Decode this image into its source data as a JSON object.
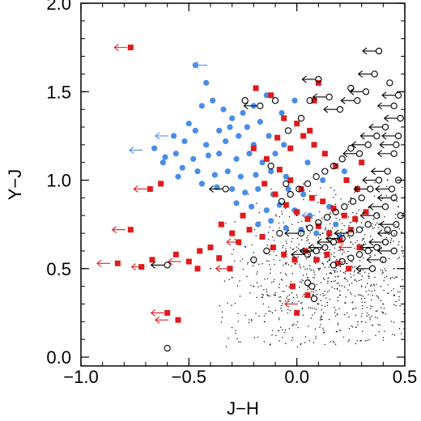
{
  "chart_data": {
    "type": "scatter",
    "xlabel": "J−H",
    "ylabel": "Y−J",
    "xlim": [
      -1.0,
      0.5
    ],
    "ylim": [
      -0.05,
      2.0
    ],
    "x_ticks": [
      "−1.0",
      "−0.5",
      "0.0",
      "0.5"
    ],
    "x_tick_values": [
      -1.0,
      -0.5,
      0.0,
      0.5
    ],
    "y_ticks": [
      "0.0",
      "0.5",
      "1.0",
      "1.5",
      "2.0"
    ],
    "y_tick_values": [
      0.0,
      0.5,
      1.0,
      1.5,
      2.0
    ],
    "grid": false,
    "legend": "none",
    "series": [
      {
        "marker": "small-black-dots",
        "color": "#000000",
        "description_points": [
          [
            -0.02,
            0.18
          ],
          [
            0.1,
            0.3
          ],
          [
            0.2,
            0.35
          ],
          [
            0.3,
            0.4
          ],
          [
            0.4,
            0.3
          ],
          [
            0.45,
            0.5
          ],
          [
            0.35,
            0.6
          ],
          [
            0.25,
            0.65
          ],
          [
            0.15,
            0.55
          ],
          [
            0.05,
            0.45
          ],
          [
            0.3,
            0.2
          ],
          [
            0.4,
            0.25
          ],
          [
            0.45,
            0.35
          ],
          [
            0.2,
            0.15
          ],
          [
            0.35,
            0.18
          ],
          [
            0.48,
            0.4
          ],
          [
            0.1,
            0.5
          ],
          [
            -0.1,
            0.35
          ],
          [
            -0.2,
            0.4
          ],
          [
            -0.15,
            0.2
          ],
          [
            0.0,
            0.8
          ],
          [
            0.25,
            0.9
          ],
          [
            0.42,
            1.0
          ],
          [
            0.38,
            0.75
          ],
          [
            0.47,
            0.85
          ],
          [
            -0.3,
            0.45
          ],
          [
            -0.4,
            0.5
          ],
          [
            -0.05,
            0.6
          ],
          [
            0.12,
            0.7
          ],
          [
            0.28,
            0.5
          ]
        ]
      },
      {
        "marker": "blue-filled-circle",
        "color": "#4a8de8",
        "points": [
          [
            -0.47,
            1.65
          ],
          [
            -0.42,
            1.55
          ],
          [
            -0.39,
            1.45
          ],
          [
            -0.44,
            1.42
          ],
          [
            -0.3,
            1.35
          ],
          [
            -0.25,
            1.38
          ],
          [
            -0.5,
            1.32
          ],
          [
            -0.47,
            1.28
          ],
          [
            -0.36,
            1.28
          ],
          [
            -0.31,
            1.3
          ],
          [
            -0.23,
            1.3
          ],
          [
            -0.17,
            1.33
          ],
          [
            -0.57,
            1.25
          ],
          [
            -0.52,
            1.22
          ],
          [
            -0.42,
            1.2
          ],
          [
            -0.33,
            1.22
          ],
          [
            -0.27,
            1.25
          ],
          [
            -0.2,
            1.2
          ],
          [
            -0.13,
            1.25
          ],
          [
            -0.66,
            1.18
          ],
          [
            -0.61,
            1.13
          ],
          [
            -0.56,
            1.15
          ],
          [
            -0.48,
            1.12
          ],
          [
            -0.41,
            1.14
          ],
          [
            -0.36,
            1.15
          ],
          [
            -0.28,
            1.12
          ],
          [
            -0.22,
            1.15
          ],
          [
            -0.16,
            1.1
          ],
          [
            -0.1,
            1.15
          ],
          [
            -0.06,
            1.2
          ],
          [
            -0.53,
            1.07
          ],
          [
            -0.46,
            1.05
          ],
          [
            -0.38,
            1.03
          ],
          [
            -0.32,
            1.05
          ],
          [
            -0.26,
            1.02
          ],
          [
            -0.19,
            1.03
          ],
          [
            -0.12,
            1.05
          ],
          [
            -0.05,
            1.02
          ],
          [
            -0.44,
            0.98
          ],
          [
            -0.37,
            0.96
          ],
          [
            -0.3,
            0.95
          ],
          [
            -0.24,
            0.93
          ],
          [
            -0.18,
            0.95
          ],
          [
            -0.11,
            0.92
          ],
          [
            -0.04,
            0.95
          ],
          [
            0.03,
            0.92
          ],
          [
            -0.28,
            0.87
          ],
          [
            -0.21,
            0.85
          ],
          [
            -0.14,
            0.83
          ],
          [
            -0.08,
            0.86
          ],
          [
            -0.01,
            0.83
          ],
          [
            0.06,
            0.8
          ],
          [
            -0.18,
            0.75
          ],
          [
            -0.12,
            0.77
          ],
          [
            -0.05,
            0.73
          ],
          [
            0.02,
            0.72
          ],
          [
            0.09,
            0.7
          ],
          [
            -0.34,
            1.4
          ],
          [
            -0.2,
            1.42
          ],
          [
            -0.07,
            1.38
          ],
          [
            -0.14,
            1.48
          ],
          [
            -0.01,
            1.45
          ],
          [
            0.05,
            1.1
          ],
          [
            0.12,
            1.0
          ],
          [
            0.15,
            0.85
          ],
          [
            0.18,
            0.75
          ],
          [
            0.2,
            0.68
          ],
          [
            0.22,
            1.05
          ],
          [
            -0.55,
            1.02
          ],
          [
            -0.62,
            1.1
          ]
        ]
      },
      {
        "marker": "blue-upper-limit-arrow",
        "color": "#4a8de8",
        "points": [
          [
            -0.4,
            1.65
          ],
          [
            -0.58,
            1.25
          ],
          [
            -0.7,
            1.17
          ],
          [
            0.1,
            0.8
          ]
        ]
      },
      {
        "marker": "red-filled-square",
        "color": "#e01b1b",
        "points": [
          [
            -0.77,
            1.75
          ],
          [
            -0.63,
            0.98
          ],
          [
            -0.68,
            0.95
          ],
          [
            -0.77,
            0.72
          ],
          [
            -0.67,
            0.55
          ],
          [
            -0.72,
            0.51
          ],
          [
            -0.83,
            0.53
          ],
          [
            -0.56,
            0.58
          ],
          [
            -0.5,
            0.54
          ],
          [
            -0.46,
            0.5
          ],
          [
            -0.6,
            0.25
          ],
          [
            -0.55,
            0.21
          ],
          [
            -0.4,
            0.62
          ],
          [
            -0.36,
            0.56
          ],
          [
            -0.31,
            0.5
          ],
          [
            -0.27,
            0.65
          ],
          [
            -0.22,
            0.72
          ],
          [
            -0.16,
            0.68
          ],
          [
            -0.11,
            0.62
          ],
          [
            -0.06,
            0.58
          ],
          [
            -0.01,
            0.55
          ],
          [
            0.04,
            0.6
          ],
          [
            0.09,
            0.55
          ],
          [
            0.14,
            0.58
          ],
          [
            0.19,
            0.53
          ],
          [
            0.24,
            0.5
          ],
          [
            0.29,
            0.62
          ],
          [
            -0.19,
            1.52
          ],
          [
            -0.12,
            1.48
          ],
          [
            -0.06,
            1.35
          ],
          [
            0.0,
            1.32
          ],
          [
            0.06,
            1.28
          ],
          [
            0.1,
            1.55
          ],
          [
            0.08,
            1.45
          ],
          [
            -0.2,
            1.18
          ],
          [
            -0.14,
            1.12
          ],
          [
            -0.08,
            1.06
          ],
          [
            -0.03,
            1.0
          ],
          [
            0.02,
            0.95
          ],
          [
            0.07,
            0.9
          ],
          [
            0.12,
            0.88
          ],
          [
            0.17,
            0.84
          ],
          [
            0.22,
            0.8
          ],
          [
            0.27,
            0.78
          ],
          [
            0.32,
            0.82
          ],
          [
            -0.15,
            0.98
          ],
          [
            -0.1,
            0.92
          ],
          [
            -0.05,
            0.86
          ],
          [
            0.0,
            0.82
          ],
          [
            0.05,
            0.78
          ],
          [
            0.1,
            0.74
          ],
          [
            0.15,
            0.7
          ],
          [
            0.2,
            0.66
          ],
          [
            0.25,
            0.72
          ],
          [
            0.0,
            0.25
          ],
          [
            0.05,
            0.35
          ],
          [
            -0.02,
            0.4
          ],
          [
            -0.25,
            0.8
          ],
          [
            -0.3,
            0.7
          ],
          [
            -0.35,
            0.75
          ],
          [
            -0.45,
            0.6
          ],
          [
            0.3,
            1.1
          ],
          [
            0.28,
            0.95
          ],
          [
            0.18,
            1.08
          ],
          [
            0.13,
            1.15
          ],
          [
            0.08,
            1.2
          ],
          [
            0.03,
            1.25
          ],
          [
            -0.03,
            1.18
          ],
          [
            -0.09,
            1.24
          ],
          [
            0.23,
            1.0
          ]
        ]
      },
      {
        "marker": "red-upper-limit-arrow",
        "color": "#e01b1b",
        "points": [
          [
            -0.77,
            1.75
          ],
          [
            -0.68,
            0.95
          ],
          [
            -0.78,
            0.72
          ],
          [
            -0.85,
            0.53
          ],
          [
            -0.58,
            0.21
          ],
          [
            -0.6,
            0.25
          ],
          [
            -0.52,
            0.54
          ],
          [
            -0.69,
            0.51
          ],
          [
            -0.3,
            0.5
          ],
          [
            -0.25,
            0.65
          ],
          [
            0.02,
            0.3
          ],
          [
            0.27,
            0.62
          ]
        ]
      },
      {
        "marker": "black-open-circle",
        "color": "#000000",
        "points": [
          [
            -0.6,
            0.05
          ],
          [
            0.07,
            0.4
          ],
          [
            0.08,
            0.33
          ],
          [
            0.05,
            0.42
          ],
          [
            0.38,
            1.73
          ],
          [
            0.36,
            1.6
          ],
          [
            0.32,
            1.5
          ],
          [
            0.28,
            1.45
          ],
          [
            0.25,
            1.52
          ],
          [
            0.2,
            1.4
          ],
          [
            0.15,
            1.47
          ],
          [
            0.1,
            1.57
          ],
          [
            0.06,
            1.45
          ],
          [
            0.02,
            1.35
          ],
          [
            -0.04,
            1.28
          ],
          [
            -0.1,
            1.45
          ],
          [
            -0.17,
            1.42
          ],
          [
            -0.24,
            1.45
          ],
          [
            0.45,
            1.42
          ],
          [
            0.41,
            1.3
          ],
          [
            0.37,
            1.25
          ],
          [
            0.33,
            1.2
          ],
          [
            0.29,
            1.15
          ],
          [
            0.25,
            1.18
          ],
          [
            0.21,
            1.12
          ],
          [
            0.17,
            1.08
          ],
          [
            0.13,
            1.05
          ],
          [
            0.09,
            1.02
          ],
          [
            0.05,
            0.98
          ],
          [
            0.01,
            0.95
          ],
          [
            -0.03,
            0.92
          ],
          [
            -0.07,
            0.88
          ],
          [
            0.45,
            1.15
          ],
          [
            0.42,
            1.05
          ],
          [
            0.38,
            1.0
          ],
          [
            0.34,
            0.95
          ],
          [
            0.3,
            0.9
          ],
          [
            0.26,
            0.88
          ],
          [
            0.22,
            0.85
          ],
          [
            0.18,
            0.82
          ],
          [
            0.14,
            0.79
          ],
          [
            0.1,
            0.76
          ],
          [
            0.06,
            0.73
          ],
          [
            0.02,
            0.7
          ],
          [
            0.45,
            0.9
          ],
          [
            0.41,
            0.85
          ],
          [
            0.37,
            0.8
          ],
          [
            0.33,
            0.75
          ],
          [
            0.29,
            0.72
          ],
          [
            0.25,
            0.7
          ],
          [
            0.21,
            0.67
          ],
          [
            0.17,
            0.65
          ],
          [
            0.13,
            0.62
          ],
          [
            0.09,
            0.6
          ],
          [
            0.05,
            0.58
          ],
          [
            0.45,
            0.7
          ],
          [
            0.41,
            0.65
          ],
          [
            0.37,
            0.62
          ],
          [
            0.33,
            0.6
          ],
          [
            0.29,
            0.58
          ],
          [
            0.25,
            0.56
          ],
          [
            0.21,
            0.54
          ],
          [
            0.17,
            0.52
          ],
          [
            0.45,
            0.6
          ],
          [
            0.4,
            0.55
          ],
          [
            0.35,
            0.5
          ],
          [
            -0.33,
            0.95
          ],
          [
            -0.6,
            0.52
          ],
          [
            -0.2,
            0.55
          ],
          [
            -0.14,
            0.6
          ],
          [
            -0.08,
            0.7
          ],
          [
            -0.05,
            0.98
          ],
          [
            -0.12,
            1.08
          ],
          [
            0.47,
            1.0
          ],
          [
            0.48,
            0.8
          ],
          [
            0.47,
            1.25
          ],
          [
            0.48,
            1.35
          ],
          [
            0.47,
            1.48
          ],
          [
            0.43,
            1.55
          ],
          [
            0.46,
            1.2
          ],
          [
            0.44,
            0.95
          ],
          [
            0.46,
            0.75
          ],
          [
            0.42,
            0.72
          ]
        ]
      },
      {
        "marker": "black-upper-limit-arrow",
        "color": "#000000",
        "points": [
          [
            0.38,
            1.73
          ],
          [
            0.36,
            1.6
          ],
          [
            0.32,
            1.5
          ],
          [
            0.28,
            1.45
          ],
          [
            0.2,
            1.4
          ],
          [
            0.15,
            1.47
          ],
          [
            0.1,
            1.57
          ],
          [
            -0.17,
            1.42
          ],
          [
            -0.33,
            0.95
          ],
          [
            0.45,
            1.42
          ],
          [
            0.41,
            1.3
          ],
          [
            0.37,
            1.25
          ],
          [
            0.33,
            1.2
          ],
          [
            0.29,
            1.15
          ],
          [
            0.45,
            1.15
          ],
          [
            0.42,
            1.05
          ],
          [
            0.38,
            1.0
          ],
          [
            0.34,
            0.95
          ],
          [
            0.45,
            0.9
          ],
          [
            0.41,
            0.85
          ],
          [
            0.37,
            0.8
          ],
          [
            0.45,
            0.7
          ],
          [
            0.41,
            0.65
          ],
          [
            0.37,
            0.62
          ],
          [
            0.45,
            0.6
          ],
          [
            0.4,
            0.55
          ],
          [
            0.35,
            0.5
          ],
          [
            0.02,
            0.7
          ],
          [
            0.05,
            0.58
          ],
          [
            0.09,
            0.6
          ],
          [
            -0.6,
            0.52
          ],
          [
            0.47,
            1.25
          ],
          [
            0.48,
            1.35
          ],
          [
            0.47,
            1.48
          ],
          [
            0.46,
            1.2
          ],
          [
            0.44,
            0.95
          ],
          [
            0.46,
            0.75
          ],
          [
            0.25,
            0.7
          ],
          [
            0.21,
            0.67
          ],
          [
            0.17,
            0.65
          ],
          [
            0.13,
            0.62
          ]
        ]
      }
    ]
  }
}
